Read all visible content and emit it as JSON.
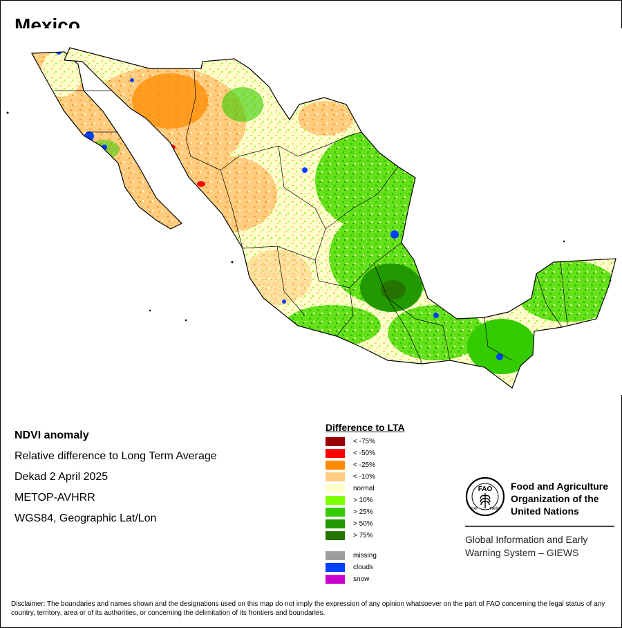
{
  "map": {
    "title": "Mexico"
  },
  "info": {
    "lines": [
      "NDVI anomaly",
      "Relative difference to Long Term Average",
      "Dekad 2 April 2025",
      "METOP-AVHRR",
      "WGS84, Geographic Lat/Lon"
    ]
  },
  "legend": {
    "title": "Difference to LTA",
    "classes": [
      {
        "label": "< -75%",
        "color": "#990000"
      },
      {
        "label": "< -50%",
        "color": "#ff0000"
      },
      {
        "label": "< -25%",
        "color": "#ff8c00"
      },
      {
        "label": "< -10%",
        "color": "#ffcc80"
      },
      {
        "label": "normal",
        "color": "#ffffcc"
      },
      {
        "label": "> 10%",
        "color": "#80ff00"
      },
      {
        "label": "> 25%",
        "color": "#33cc00"
      },
      {
        "label": "> 50%",
        "color": "#229900"
      },
      {
        "label": "> 75%",
        "color": "#267300"
      }
    ],
    "special": [
      {
        "label": "missing",
        "color": "#9e9e9e"
      },
      {
        "label": "clouds",
        "color": "#0040ff"
      },
      {
        "label": "snow",
        "color": "#cc00cc"
      }
    ]
  },
  "fao": {
    "logo_letters": {
      "top": "FAO",
      "arc_left": "FIAT",
      "arc_right": "PANIS"
    },
    "name_lines": [
      "Food and Agriculture",
      "Organization of the",
      "United Nations"
    ],
    "giews_lines": [
      "Global Information and Early",
      "Warning System – GIEWS"
    ]
  },
  "disclaimer": "Disclaimer: The boundaries and names shown and the designations used on this map do not imply the expression of any opinion whatsoever on the part of FAO concerning the legal status of any country, territory, area or of its authorities, or concerning the delimitation of its frontiers and boundaries."
}
